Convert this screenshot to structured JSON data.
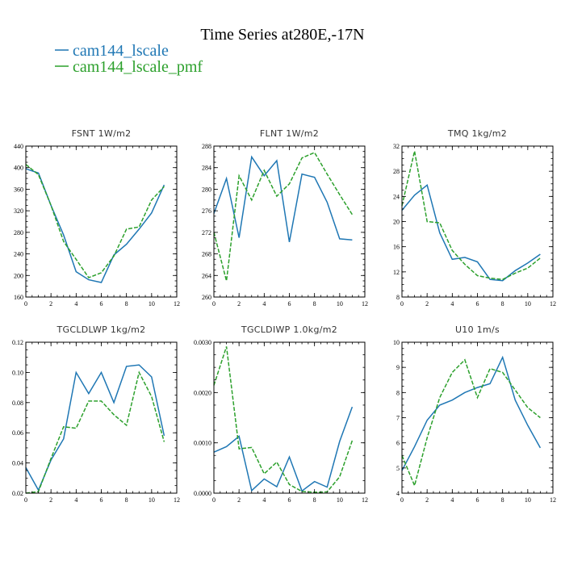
{
  "figure": {
    "title": "Time Series at280E,-17N",
    "legend": [
      {
        "name": "cam144_lscale",
        "color": "#1f77b4"
      },
      {
        "name": "cam144_lscale_pmf",
        "color": "#2ca02c"
      }
    ]
  },
  "chart_data": [
    {
      "type": "line",
      "title": "FSNT   1W/m2",
      "x": [
        0,
        1,
        2,
        3,
        4,
        5,
        6,
        7,
        8,
        9,
        10,
        11
      ],
      "xlim": [
        0,
        12
      ],
      "xticks": [
        "0",
        "2",
        "4",
        "6",
        "8",
        "10",
        "12"
      ],
      "ylim": [
        160,
        440
      ],
      "yticks": [
        "160",
        "200",
        "240",
        "280",
        "320",
        "360",
        "400",
        "440"
      ],
      "series": [
        {
          "name": "cam144_lscale",
          "color": "#1f77b4",
          "dashed": false,
          "values": [
            398,
            390,
            330,
            275,
            207,
            192,
            187,
            238,
            258,
            286,
            316,
            368
          ]
        },
        {
          "name": "cam144_lscale_pmf",
          "color": "#2ca02c",
          "dashed": true,
          "values": [
            406,
            387,
            330,
            263,
            230,
            196,
            205,
            236,
            286,
            290,
            340,
            365
          ]
        }
      ]
    },
    {
      "type": "line",
      "title": "FLNT   1W/m2",
      "x": [
        0,
        1,
        2,
        3,
        4,
        5,
        6,
        7,
        8,
        9,
        10,
        11
      ],
      "xlim": [
        0,
        12
      ],
      "xticks": [
        "0",
        "2",
        "4",
        "6",
        "8",
        "10",
        "12"
      ],
      "ylim": [
        260,
        288
      ],
      "yticks": [
        "260",
        "264",
        "268",
        "272",
        "276",
        "280",
        "284",
        "288"
      ],
      "series": [
        {
          "name": "cam144_lscale",
          "color": "#1f77b4",
          "dashed": false,
          "values": [
            275.5,
            282,
            271,
            286,
            282.5,
            285.3,
            270.2,
            282.8,
            282.2,
            277.6,
            270.8,
            270.6
          ]
        },
        {
          "name": "cam144_lscale_pmf",
          "color": "#2ca02c",
          "dashed": true,
          "values": [
            272,
            263,
            282.5,
            278,
            283.5,
            278.7,
            281,
            285.8,
            286.8,
            282.8,
            279,
            275.3
          ]
        }
      ]
    },
    {
      "type": "line",
      "title": "TMQ   1kg/m2",
      "x": [
        0,
        1,
        2,
        3,
        4,
        5,
        6,
        7,
        8,
        9,
        10,
        11
      ],
      "xlim": [
        0,
        12
      ],
      "xticks": [
        "0",
        "2",
        "4",
        "6",
        "8",
        "10",
        "12"
      ],
      "ylim": [
        8,
        32
      ],
      "yticks": [
        "8",
        "12",
        "16",
        "20",
        "24",
        "28",
        "32"
      ],
      "series": [
        {
          "name": "cam144_lscale",
          "color": "#1f77b4",
          "dashed": false,
          "values": [
            21.8,
            24.2,
            25.8,
            18.2,
            14,
            14.3,
            13.6,
            10.8,
            10.6,
            12.2,
            13.4,
            14.8
          ]
        },
        {
          "name": "cam144_lscale_pmf",
          "color": "#2ca02c",
          "dashed": true,
          "values": [
            22.5,
            31.2,
            20,
            19.8,
            15.4,
            13.2,
            11.4,
            11,
            10.8,
            11.8,
            12.6,
            14.2
          ]
        }
      ]
    },
    {
      "type": "line",
      "title": "TGCLDLWP   1kg/m2",
      "x": [
        0,
        1,
        2,
        3,
        4,
        5,
        6,
        7,
        8,
        9,
        10,
        11
      ],
      "xlim": [
        0,
        12
      ],
      "xticks": [
        "0",
        "2",
        "4",
        "6",
        "8",
        "10",
        "12"
      ],
      "ylim": [
        0.02,
        0.12
      ],
      "yticks": [
        "0.02",
        "0.04",
        "0.06",
        "0.08",
        "0.10",
        "0.12"
      ],
      "series": [
        {
          "name": "cam144_lscale",
          "color": "#1f77b4",
          "dashed": false,
          "values": [
            0.037,
            0.022,
            0.042,
            0.056,
            0.1,
            0.086,
            0.1,
            0.08,
            0.104,
            0.105,
            0.097,
            0.058
          ]
        },
        {
          "name": "cam144_lscale_pmf",
          "color": "#2ca02c",
          "dashed": true,
          "values": [
            0.02,
            0.021,
            0.043,
            0.064,
            0.063,
            0.081,
            0.081,
            0.072,
            0.065,
            0.1,
            0.084,
            0.054
          ]
        }
      ]
    },
    {
      "type": "line",
      "title": "TGCLDIWP   1.0kg/m2",
      "x": [
        0,
        1,
        2,
        3,
        4,
        5,
        6,
        7,
        8,
        9,
        10,
        11
      ],
      "xlim": [
        0,
        12
      ],
      "xticks": [
        "0",
        "2",
        "4",
        "6",
        "8",
        "10",
        "12"
      ],
      "ylim": [
        0,
        0.0035
      ],
      "yticks": [
        "0.0000",
        "0.0010",
        "0.0020",
        "0.0030"
      ],
      "series": [
        {
          "name": "cam144_lscale",
          "color": "#1f77b4",
          "dashed": false,
          "values": [
            0.00095,
            0.00108,
            0.00132,
            6e-05,
            0.00033,
            0.00015,
            0.00084,
            5e-05,
            0.00027,
            0.00014,
            0.0012,
            0.002
          ]
        },
        {
          "name": "cam144_lscale_pmf",
          "color": "#2ca02c",
          "dashed": true,
          "values": [
            0.0025,
            0.0034,
            0.00103,
            0.00106,
            0.00045,
            0.00072,
            0.0002,
            4e-05,
            2e-05,
            3e-05,
            0.00038,
            0.00122
          ]
        }
      ]
    },
    {
      "type": "line",
      "title": "U10   1m/s",
      "x": [
        0,
        1,
        2,
        3,
        4,
        5,
        6,
        7,
        8,
        9,
        10,
        11
      ],
      "xlim": [
        0,
        12
      ],
      "xticks": [
        "0",
        "2",
        "4",
        "6",
        "8",
        "10",
        "12"
      ],
      "ylim": [
        4,
        10
      ],
      "yticks": [
        "4",
        "5",
        "6",
        "7",
        "8",
        "9",
        "10"
      ],
      "series": [
        {
          "name": "cam144_lscale",
          "color": "#1f77b4",
          "dashed": false,
          "values": [
            4.9,
            5.85,
            6.9,
            7.5,
            7.7,
            8,
            8.2,
            8.35,
            9.4,
            7.7,
            6.7,
            5.8
          ]
        },
        {
          "name": "cam144_lscale_pmf",
          "color": "#2ca02c",
          "dashed": true,
          "values": [
            5.5,
            4.3,
            6.2,
            7.8,
            8.8,
            9.3,
            7.8,
            8.95,
            8.8,
            8.1,
            7.4,
            7
          ]
        }
      ]
    }
  ]
}
